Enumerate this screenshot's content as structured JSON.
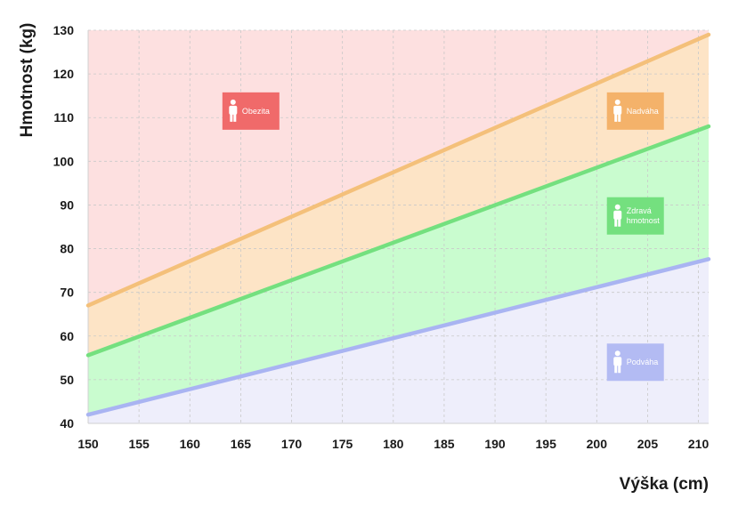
{
  "chart_data": {
    "type": "area",
    "xlabel": "Výška (cm)",
    "ylabel": "Hmotnost (kg)",
    "xlim": [
      150,
      211
    ],
    "ylim": [
      40,
      130
    ],
    "xticks": [
      150,
      155,
      160,
      165,
      170,
      175,
      180,
      185,
      190,
      195,
      200,
      205,
      210
    ],
    "yticks": [
      40,
      50,
      60,
      70,
      80,
      90,
      100,
      110,
      120,
      130
    ],
    "grid": true,
    "boundaries": [
      {
        "id": "underweight-line",
        "color": "#a9b4f2",
        "x": [
          150,
          211
        ],
        "y": [
          42,
          77.6
        ]
      },
      {
        "id": "healthy-line",
        "color": "#74e07f",
        "x": [
          150,
          211
        ],
        "y": [
          55.6,
          108
        ]
      },
      {
        "id": "overweight-line",
        "color": "#f4c07a",
        "x": [
          150,
          211
        ],
        "y": [
          67,
          129
        ]
      }
    ],
    "zones": [
      {
        "id": "underweight",
        "label": [
          "Podváha"
        ],
        "fill": "#eeeefb",
        "badge": "#b3bbf3",
        "anchor_x": 203.8,
        "anchor_y": 54
      },
      {
        "id": "healthy",
        "label": [
          "Zdravá",
          "hmotnost"
        ],
        "fill": "#c9fccf",
        "badge": "#74e07f",
        "anchor_x": 203.8,
        "anchor_y": 87.5
      },
      {
        "id": "overweight",
        "label": [
          "Nadváha"
        ],
        "fill": "#fde4c6",
        "badge": "#f4b26a",
        "anchor_x": 203.8,
        "anchor_y": 111.5
      },
      {
        "id": "obesity",
        "label": [
          "Obezita"
        ],
        "fill": "#fde0e0",
        "badge": "#f06a6a",
        "anchor_x": 166,
        "anchor_y": 111.5
      }
    ]
  }
}
